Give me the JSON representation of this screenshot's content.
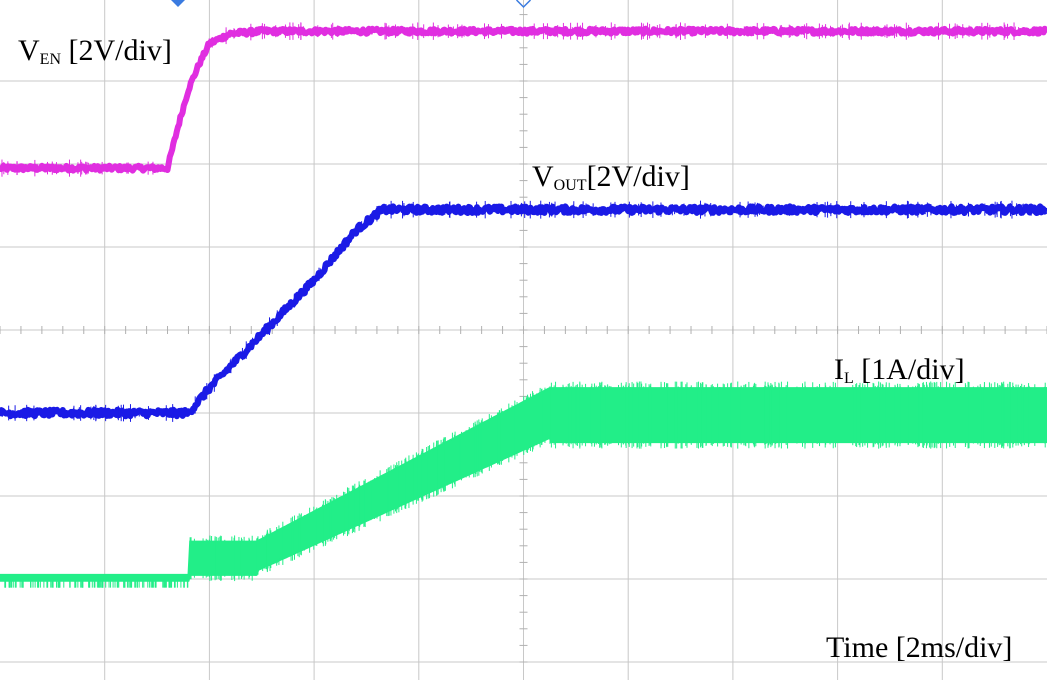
{
  "chart_data": {
    "type": "line",
    "grid": true,
    "x_unit": "ms",
    "x_range": [
      -10,
      10
    ],
    "y_unit": "div",
    "y_range": [
      -4,
      4
    ],
    "time_label": "Time [2ms/div]",
    "series": [
      {
        "name": "VEN",
        "label_main": "V",
        "label_sub": "EN",
        "label_rest": " [2V/div]",
        "color": "#e02ee0",
        "noise": 0.03,
        "x": [
          -10,
          -6.8,
          -6.6,
          -6.4,
          -6.2,
          -6.0,
          -5.6,
          -5.0,
          10
        ],
        "y": [
          1.95,
          1.95,
          2.45,
          2.9,
          3.2,
          3.45,
          3.57,
          3.6,
          3.6
        ]
      },
      {
        "name": "VOUT",
        "label_main": "V",
        "label_sub": "OUT",
        "label_rest": "[2V/div]",
        "color": "#1a1ae6",
        "noise": 0.04,
        "x": [
          -10,
          -6.4,
          -6.0,
          -5.0,
          -4.0,
          -3.2,
          -2.7,
          -2.3,
          10
        ],
        "y": [
          -1.0,
          -1.0,
          -0.7,
          -0.05,
          0.6,
          1.2,
          1.45,
          1.45,
          1.45
        ]
      },
      {
        "name": "IL",
        "label_main": "I",
        "label_sub": "L",
        "label_rest": " [1A/div]",
        "color": "#22ee88",
        "x": [
          -10,
          -6.4,
          -6.4,
          -5.1,
          -5.1,
          0.5,
          0.5,
          10
        ],
        "y_low": [
          -3.02,
          -3.02,
          -2.95,
          -2.95,
          -2.9,
          -1.3,
          -1.35,
          -1.35
        ],
        "y_high": [
          -2.95,
          -2.95,
          -2.55,
          -2.55,
          -2.55,
          -0.7,
          -0.7,
          -0.7
        ]
      }
    ]
  }
}
